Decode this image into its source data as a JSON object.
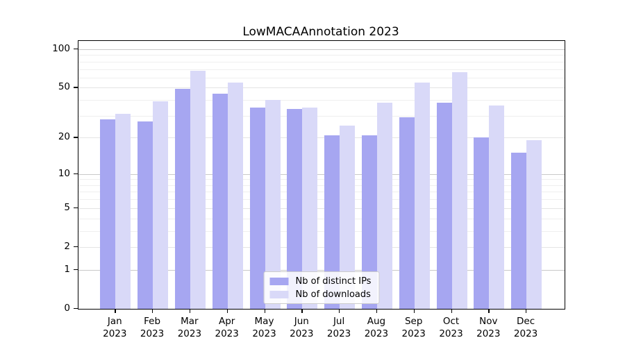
{
  "title": "LowMACAAnnotation 2023",
  "chart_data": {
    "type": "bar",
    "title": "LowMACAAnnotation 2023",
    "categories": [
      "Jan",
      "Feb",
      "Mar",
      "Apr",
      "May",
      "Jun",
      "Jul",
      "Aug",
      "Sep",
      "Oct",
      "Nov",
      "Dec"
    ],
    "category_year": "2023",
    "series": [
      {
        "name": "Nb of distinct IPs",
        "color": "#a6a6f1",
        "values": [
          28,
          27,
          49,
          45,
          35,
          34,
          21,
          21,
          29,
          38,
          20,
          15
        ]
      },
      {
        "name": "Nb of downloads",
        "color": "#d9d9f8",
        "values": [
          31,
          39,
          68,
          55,
          40,
          35,
          25,
          38,
          55,
          66,
          36,
          19
        ]
      }
    ],
    "y_scale": "log10(value+1)",
    "y_ticks": [
      0,
      1,
      2,
      5,
      10,
      20,
      50,
      100
    ],
    "y_minor_ticks": [
      3,
      4,
      6,
      7,
      8,
      9,
      30,
      40,
      60,
      70,
      80,
      90
    ],
    "ylim": [
      0,
      116
    ],
    "xlabel": "",
    "ylabel": "",
    "grid": "horizontal",
    "legend_position": "lower-center-inside"
  }
}
